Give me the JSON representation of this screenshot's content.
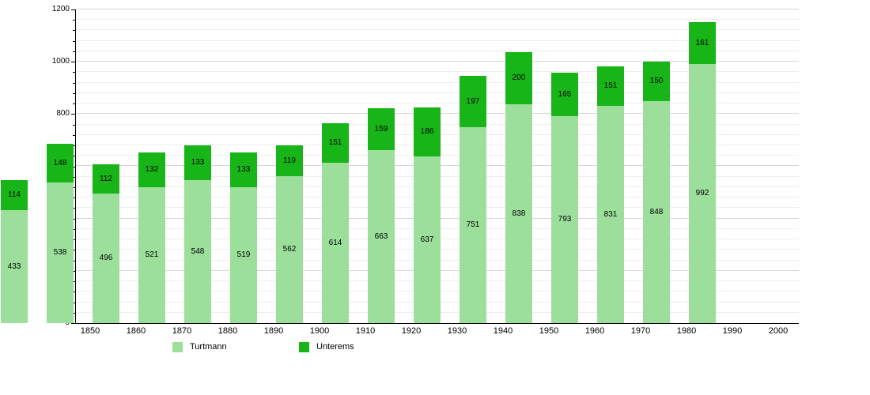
{
  "chart_data": {
    "type": "bar",
    "stacked": true,
    "title": "",
    "xlabel": "",
    "ylabel": "",
    "categories": [
      "1850",
      "1860",
      "1870",
      "1880",
      "1890",
      "1900",
      "1910",
      "1920",
      "1930",
      "1940",
      "1950",
      "1960",
      "1970",
      "1980",
      "1990",
      "2000"
    ],
    "series": [
      {
        "name": "Turtmann",
        "color": "#9bdf9b",
        "values": [
          433,
          538,
          496,
          521,
          548,
          519,
          562,
          614,
          663,
          637,
          751,
          838,
          793,
          831,
          848,
          992
        ]
      },
      {
        "name": "Unterems",
        "color": "#17b517",
        "values": [
          114,
          148,
          112,
          132,
          133,
          133,
          119,
          151,
          159,
          186,
          197,
          200,
          165,
          151,
          150,
          161
        ]
      }
    ],
    "ylim": [
      0,
      1200
    ],
    "y_major_step": 200,
    "y_minor_step": 40,
    "y_tick_labels": [
      "0",
      "200",
      "400",
      "600",
      "800",
      "1000",
      "1200"
    ],
    "grid": true,
    "legend_position": "bottom",
    "bar_value_labels_shown": true
  },
  "legend": {
    "items": [
      {
        "label": "Turtmann",
        "color": "#9bdf9b"
      },
      {
        "label": "Unterems",
        "color": "#17b517"
      }
    ]
  },
  "colors": {
    "background": "#ffffff",
    "axis": "#000000",
    "grid_minor": "#ededed",
    "grid_major": "#d7d7d7",
    "text": "#000000",
    "turtmann": "#9bdf9b",
    "unterems": "#17b517"
  }
}
